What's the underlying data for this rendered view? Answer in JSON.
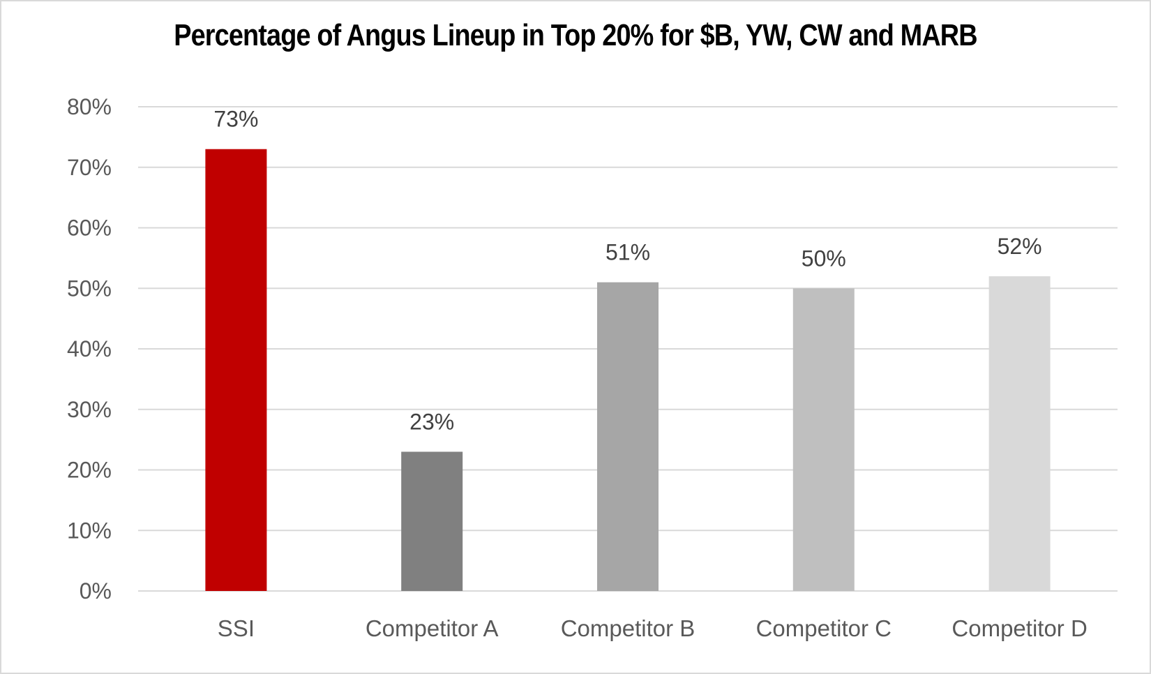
{
  "chart_data": {
    "type": "bar",
    "title": "Percentage of Angus Lineup in Top 20% for $B, YW, CW and MARB",
    "xlabel": "",
    "ylabel": "",
    "categories": [
      "SSI",
      "Competitor A",
      "Competitor B",
      "Competitor C",
      "Competitor D"
    ],
    "values": [
      73,
      23,
      51,
      50,
      52
    ],
    "data_labels": [
      "73%",
      "23%",
      "51%",
      "50%",
      "52%"
    ],
    "colors": [
      "#c00000",
      "#808080",
      "#a6a6a6",
      "#bfbfbf",
      "#d9d9d9"
    ],
    "ylim": [
      0,
      80
    ],
    "yticks": [
      0,
      10,
      20,
      30,
      40,
      50,
      60,
      70,
      80
    ],
    "ytick_labels": [
      "0%",
      "10%",
      "20%",
      "30%",
      "40%",
      "50%",
      "60%",
      "70%",
      "80%"
    ],
    "grid": true,
    "legend": "none"
  }
}
